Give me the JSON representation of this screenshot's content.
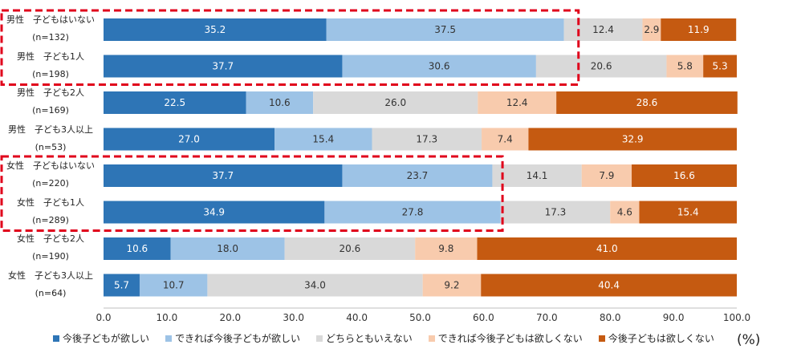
{
  "chart_data": {
    "type": "bar",
    "orientation": "horizontal",
    "stacked": true,
    "categories": [
      [
        "男性　子どもはいない",
        "(n=132)"
      ],
      [
        "男性　子ども1人",
        "(n=198)"
      ],
      [
        "男性　子ども2人",
        "(n=169)"
      ],
      [
        "男性　子ども3人以上",
        "(n=53)"
      ],
      [
        "女性　子どもはいない",
        "(n=220)"
      ],
      [
        "女性　子ども1人",
        "(n=289)"
      ],
      [
        "女性　子ども2人",
        "(n=190)"
      ],
      [
        "女性　子ども3人以上",
        "(n=64)"
      ]
    ],
    "series": [
      {
        "name": "今後子どもが欲しい",
        "color": "#2e75b6",
        "values": [
          35.2,
          37.7,
          22.5,
          27.0,
          37.7,
          34.9,
          10.6,
          5.7
        ]
      },
      {
        "name": "できれば今後子どもが欲しい",
        "color": "#9dc3e6",
        "values": [
          37.5,
          30.6,
          10.6,
          15.4,
          23.7,
          27.8,
          18.0,
          10.7
        ]
      },
      {
        "name": "どちらともいえない",
        "color": "#d9d9d9",
        "values": [
          12.4,
          20.6,
          26.0,
          17.3,
          14.1,
          17.3,
          20.6,
          34.0
        ]
      },
      {
        "name": "できれば今後子どもは欲しくない",
        "color": "#f8cbad",
        "values": [
          2.9,
          5.8,
          12.4,
          7.4,
          7.9,
          4.6,
          9.8,
          9.2
        ]
      },
      {
        "name": "今後子どもは欲しくない",
        "color": "#c55a11",
        "values": [
          11.9,
          5.3,
          28.6,
          32.9,
          16.6,
          15.4,
          41.0,
          40.4
        ]
      }
    ],
    "xlim": [
      0,
      100
    ],
    "xticks": [
      "0.0",
      "10.0",
      "20.0",
      "30.0",
      "40.0",
      "50.0",
      "60.0",
      "70.0",
      "80.0",
      "90.0",
      "100.0"
    ],
    "unit_label": "(%)",
    "highlight_groups": [
      {
        "rows": [
          0,
          1
        ],
        "through_value": 75
      },
      {
        "rows": [
          4,
          5
        ],
        "through_value": 63
      }
    ],
    "highlight_color": "#e0001b"
  }
}
